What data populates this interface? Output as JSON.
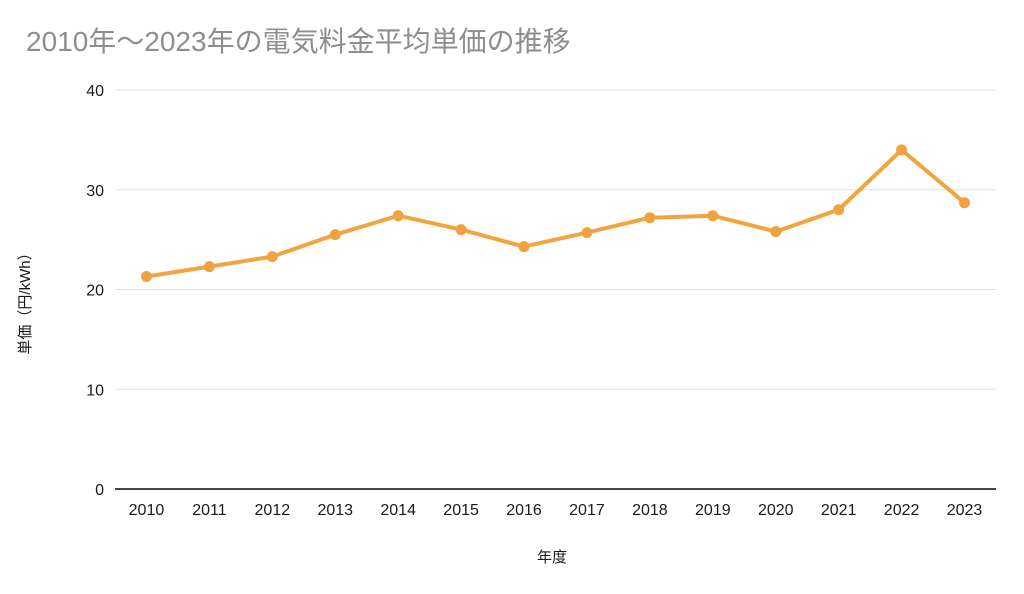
{
  "chart_data": {
    "type": "line",
    "title": "2010年〜2023年の電気料金平均単価の推移",
    "xlabel": "年度",
    "ylabel": "単価（円/kWh）",
    "categories": [
      "2010",
      "2011",
      "2012",
      "2013",
      "2014",
      "2015",
      "2016",
      "2017",
      "2018",
      "2019",
      "2020",
      "2021",
      "2022",
      "2023"
    ],
    "values": [
      21.3,
      22.3,
      23.3,
      25.5,
      27.4,
      26.0,
      24.3,
      25.7,
      27.2,
      27.4,
      25.8,
      28.0,
      34.0,
      28.7
    ],
    "ylim": [
      0,
      40
    ],
    "yticks": [
      0,
      10,
      20,
      30,
      40
    ],
    "grid": true,
    "legend_position": "none",
    "colors": {
      "line": "#F2A43E",
      "marker": "#F0A240",
      "title_text": "#8E8E8E",
      "gridline": "#E0E0E0",
      "axis_line": "#474747",
      "tick_text": "#1A1A1A"
    }
  }
}
